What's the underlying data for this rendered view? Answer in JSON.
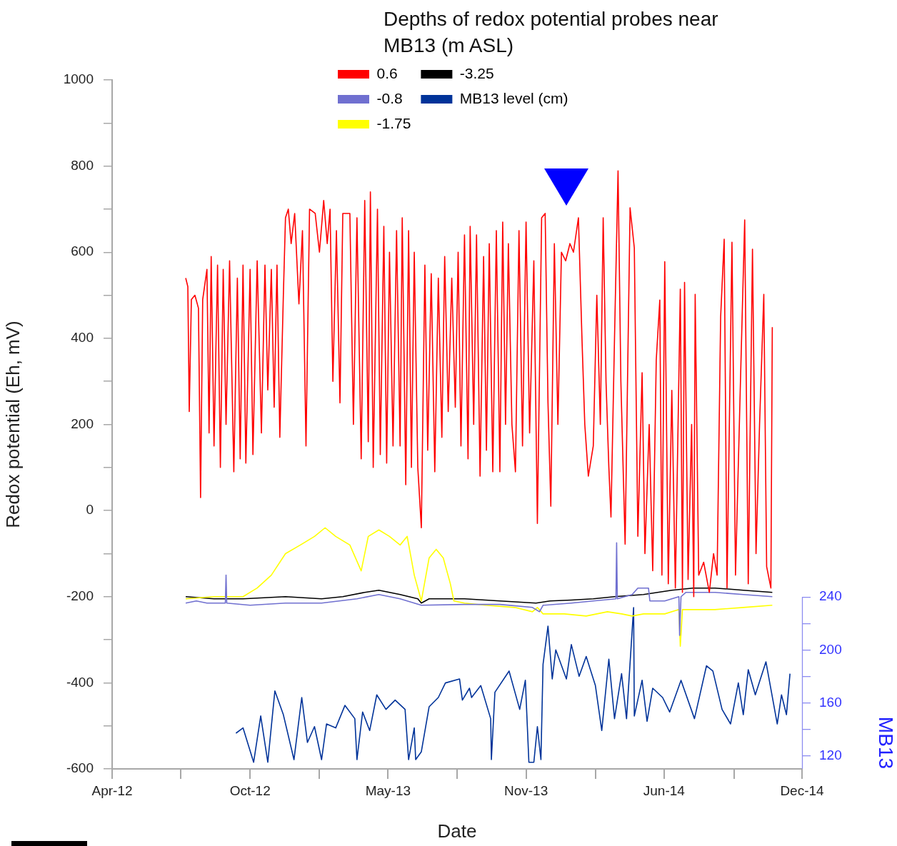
{
  "chart_data": {
    "type": "line",
    "legend_title": "Depths of redox potential probes near MB13 (m ASL)",
    "legend": "top",
    "marker": "none",
    "xlabel": "Date",
    "ylabel": "Redox potential (Eh, mV)",
    "y2label": "MB13",
    "xlim": [
      "2012-04-15",
      "2014-12-16"
    ],
    "xticks": [
      {
        "value": "2012-04-15",
        "label": "Apr-12"
      },
      {
        "value": "2012-07-21",
        "label": null
      },
      {
        "value": "2012-10-27",
        "label": "Oct-12"
      },
      {
        "value": "2013-02-02",
        "label": null
      },
      {
        "value": "2013-05-10",
        "label": "May-13"
      },
      {
        "value": "2013-08-16",
        "label": null
      },
      {
        "value": "2013-11-21",
        "label": "Nov-13"
      },
      {
        "value": "2014-02-27",
        "label": null
      },
      {
        "value": "2014-06-04",
        "label": "Jun-14"
      },
      {
        "value": "2014-09-11",
        "label": null
      },
      {
        "value": "2014-12-16",
        "label": "Dec-14"
      }
    ],
    "ylim": [
      -600,
      1000
    ],
    "yticks": [
      -600,
      {
        "value": -500,
        "label": null
      },
      -400,
      {
        "value": -300,
        "label": null
      },
      -200,
      {
        "value": -100,
        "label": null
      },
      0,
      {
        "value": 100,
        "label": null
      },
      200,
      {
        "value": 300,
        "label": null
      },
      400,
      {
        "value": 500,
        "label": null
      },
      600,
      {
        "value": 700,
        "label": null
      },
      800,
      {
        "value": 900,
        "label": null
      },
      1000
    ],
    "y2lim": [
      110,
      631
    ],
    "y2ticks": [
      120,
      {
        "value": 140,
        "label": null
      },
      160,
      {
        "value": 180,
        "label": null
      },
      200,
      {
        "value": 220,
        "label": null
      },
      240
    ],
    "series": [
      {
        "name": "0.6",
        "color": "#ff0000",
        "x": [
          "2012-07-28",
          "2012-07-31",
          "2012-08-02",
          "2012-08-05",
          "2012-08-10",
          "2012-08-15",
          "2012-08-18",
          "2012-08-21",
          "2012-08-27",
          "2012-08-30",
          "2012-09-02",
          "2012-09-06",
          "2012-09-11",
          "2012-09-15",
          "2012-09-19",
          "2012-09-23",
          "2012-09-28",
          "2012-10-04",
          "2012-10-09",
          "2012-10-13",
          "2012-10-17",
          "2012-10-21",
          "2012-10-27",
          "2012-10-31",
          "2012-11-06",
          "2012-11-12",
          "2012-11-17",
          "2012-11-21",
          "2012-11-26",
          "2012-11-30",
          "2012-12-04",
          "2012-12-08",
          "2012-12-13",
          "2012-12-16",
          "2012-12-20",
          "2012-12-24",
          "2012-12-29",
          "2013-01-04",
          "2013-01-09",
          "2013-01-14",
          "2013-01-19",
          "2013-01-27",
          "2013-02-02",
          "2013-02-08",
          "2013-02-13",
          "2013-02-17",
          "2013-02-21",
          "2013-02-26",
          "2013-03-03",
          "2013-03-07",
          "2013-03-17",
          "2013-03-22",
          "2013-03-27",
          "2013-04-02",
          "2013-04-07",
          "2013-04-12",
          "2013-04-15",
          "2013-04-19",
          "2013-04-25",
          "2013-04-29",
          "2013-05-04",
          "2013-05-08",
          "2013-05-12",
          "2013-05-17",
          "2013-05-22",
          "2013-05-27",
          "2013-05-30",
          "2013-06-04",
          "2013-06-08",
          "2013-06-12",
          "2013-06-16",
          "2013-06-21",
          "2013-06-26",
          "2013-07-01",
          "2013-07-05",
          "2013-07-10",
          "2013-07-15",
          "2013-07-20",
          "2013-07-25",
          "2013-07-29",
          "2013-08-03",
          "2013-08-08",
          "2013-08-13",
          "2013-08-17",
          "2013-08-21",
          "2013-08-26",
          "2013-08-31",
          "2013-09-03",
          "2013-09-08",
          "2013-09-12",
          "2013-09-17",
          "2013-09-22",
          "2013-09-26",
          "2013-09-30",
          "2013-10-05",
          "2013-10-10",
          "2013-10-15",
          "2013-10-19",
          "2013-10-23",
          "2013-10-27",
          "2013-11-01",
          "2013-11-06",
          "2013-11-11",
          "2013-11-16",
          "2013-11-21",
          "2013-11-26",
          "2013-12-02",
          "2013-12-07",
          "2013-12-13",
          "2013-12-18",
          "2013-12-22",
          "2013-12-26",
          "2013-12-31",
          "2014-01-05",
          "2014-01-10",
          "2014-01-16",
          "2014-01-22",
          "2014-01-27",
          "2014-02-03",
          "2014-02-08",
          "2014-02-12",
          "2014-02-17",
          "2014-02-24",
          "2014-03-01",
          "2014-03-06",
          "2014-03-10",
          "2014-03-14",
          "2014-03-18",
          "2014-03-21",
          "2014-03-26",
          "2014-03-31",
          "2014-04-04",
          "2014-04-10",
          "2014-04-17",
          "2014-04-23",
          "2014-04-28",
          "2014-05-04",
          "2014-05-08",
          "2014-05-14",
          "2014-05-19",
          "2014-05-24",
          "2014-05-29",
          "2014-06-01",
          "2014-06-05",
          "2014-06-10",
          "2014-06-15",
          "2014-06-20",
          "2014-06-27",
          "2014-06-30",
          "2014-07-03",
          "2014-07-08",
          "2014-07-13",
          "2014-07-16",
          "2014-07-18",
          "2014-07-23",
          "2014-07-30",
          "2014-08-07",
          "2014-08-13",
          "2014-08-18",
          "2014-08-23",
          "2014-08-28",
          "2014-09-01",
          "2014-09-08",
          "2014-09-13",
          "2014-09-20",
          "2014-09-26",
          "2014-10-01",
          "2014-10-07",
          "2014-10-12",
          "2014-10-17",
          "2014-10-23",
          "2014-10-27",
          "2014-11-02",
          "2014-11-04"
        ],
        "values": [
          540,
          520,
          230,
          490,
          500,
          470,
          30,
          490,
          560,
          180,
          590,
          150,
          570,
          100,
          560,
          200,
          580,
          90,
          540,
          120,
          570,
          110,
          560,
          130,
          580,
          180,
          570,
          280,
          560,
          240,
          570,
          170,
          500,
          680,
          700,
          620,
          690,
          480,
          650,
          150,
          700,
          690,
          600,
          720,
          620,
          700,
          300,
          650,
          250,
          690,
          690,
          200,
          680,
          120,
          720,
          160,
          740,
          100,
          700,
          130,
          660,
          110,
          600,
          150,
          650,
          150,
          680,
          60,
          650,
          100,
          600,
          100,
          -40,
          570,
          140,
          550,
          90,
          540,
          170,
          590,
          230,
          540,
          240,
          600,
          150,
          640,
          120,
          660,
          200,
          640,
          80,
          590,
          140,
          620,
          90,
          650,
          90,
          670,
          200,
          620,
          200,
          90,
          650,
          150,
          670,
          180,
          580,
          -30,
          680,
          690,
          250,
          10,
          620,
          200,
          600,
          580,
          620,
          600,
          680,
          400,
          200,
          80,
          150,
          500,
          200,
          680,
          300,
          100,
          -15,
          400,
          789,
          300,
          -78,
          703,
          610,
          -60,
          320,
          -100,
          200,
          -140,
          350,
          489,
          -150,
          578,
          -170,
          279,
          -180,
          514,
          -190,
          530,
          -160,
          200,
          -200,
          502,
          -150,
          -120,
          -190,
          -100,
          -150,
          450,
          630,
          -180,
          623,
          -150,
          300,
          675,
          -170,
          607,
          -100,
          200,
          502,
          -130,
          -180,
          426
        ]
      },
      {
        "name": "-0.8",
        "color": "#7070d0",
        "x": [
          "2012-07-28",
          "2012-08-12",
          "2012-08-27",
          "2012-09-22",
          "2012-09-23",
          "2012-09-24",
          "2012-10-27",
          "2012-12-16",
          "2013-02-05",
          "2013-03-27",
          "2013-04-27",
          "2013-05-27",
          "2013-06-26",
          "2013-08-26",
          "2013-10-15",
          "2013-11-30",
          "2013-12-10",
          "2013-12-15",
          "2014-01-24",
          "2014-02-24",
          "2014-03-28",
          "2014-03-29",
          "2014-03-30",
          "2014-04-20",
          "2014-04-28",
          "2014-05-13",
          "2014-05-15",
          "2014-06-05",
          "2014-06-25",
          "2014-06-26",
          "2014-06-28",
          "2014-07-05",
          "2014-08-15",
          "2014-09-24",
          "2014-11-04"
        ],
        "values": [
          -215,
          -210,
          -215,
          -215,
          -150,
          -215,
          -220,
          -215,
          -215,
          -205,
          -195,
          -205,
          -220,
          -218,
          -218,
          -225,
          -235,
          -220,
          -215,
          -210,
          -205,
          -75,
          -205,
          -195,
          -180,
          -180,
          -210,
          -210,
          -200,
          -290,
          -200,
          -190,
          -190,
          -195,
          -200
        ]
      },
      {
        "name": "-1.75",
        "color": "#ffff00",
        "x": [
          "2012-07-28",
          "2012-09-06",
          "2012-10-17",
          "2012-11-06",
          "2012-11-26",
          "2012-12-16",
          "2013-01-06",
          "2013-01-26",
          "2013-02-10",
          "2013-02-25",
          "2013-03-17",
          "2013-04-02",
          "2013-04-12",
          "2013-04-27",
          "2013-05-12",
          "2013-05-27",
          "2013-06-06",
          "2013-06-16",
          "2013-06-26",
          "2013-07-07",
          "2013-07-17",
          "2013-07-27",
          "2013-08-06",
          "2013-08-11",
          "2013-08-26",
          "2013-09-25",
          "2013-11-05",
          "2013-11-30",
          "2013-12-07",
          "2013-12-15",
          "2014-01-14",
          "2014-02-14",
          "2014-03-16",
          "2014-04-05",
          "2014-04-20",
          "2014-05-06",
          "2014-06-05",
          "2014-06-25",
          "2014-06-27",
          "2014-06-30",
          "2014-08-15",
          "2014-09-24",
          "2014-11-04"
        ],
        "values": [
          -205,
          -200,
          -200,
          -180,
          -150,
          -100,
          -80,
          -60,
          -40,
          -60,
          -80,
          -140,
          -60,
          -45,
          -60,
          -80,
          -60,
          -150,
          -210,
          -110,
          -90,
          -110,
          -170,
          -210,
          -215,
          -220,
          -225,
          -235,
          -225,
          -240,
          -240,
          -245,
          -235,
          -240,
          -245,
          -240,
          -240,
          -230,
          -315,
          -230,
          -230,
          -225,
          -220
        ]
      },
      {
        "name": "-3.25",
        "color": "#000000",
        "x": [
          "2012-07-28",
          "2012-09-06",
          "2012-10-17",
          "2012-12-16",
          "2013-02-05",
          "2013-03-07",
          "2013-04-07",
          "2013-04-27",
          "2013-05-27",
          "2013-06-21",
          "2013-06-26",
          "2013-07-07",
          "2013-08-26",
          "2013-10-15",
          "2013-12-05",
          "2013-12-25",
          "2014-01-24",
          "2014-02-24",
          "2014-03-26",
          "2014-05-06",
          "2014-06-15",
          "2014-07-15",
          "2014-08-15",
          "2014-09-24",
          "2014-11-04"
        ],
        "values": [
          -200,
          -205,
          -205,
          -200,
          -205,
          -200,
          -190,
          -185,
          -195,
          -205,
          -215,
          -205,
          -205,
          -210,
          -215,
          -210,
          -208,
          -205,
          -200,
          -195,
          -185,
          -180,
          -180,
          -185,
          -190
        ]
      },
      {
        "name": "MB13 level (cm)",
        "color": "#003399",
        "axis": "y2",
        "x": [
          "2012-10-07",
          "2012-10-17",
          "2012-11-01",
          "2012-11-11",
          "2012-11-21",
          "2012-12-01",
          "2012-12-13",
          "2012-12-28",
          "2013-01-08",
          "2013-01-16",
          "2013-01-26",
          "2013-02-05",
          "2013-02-12",
          "2013-02-25",
          "2013-03-10",
          "2013-03-24",
          "2013-03-27",
          "2013-04-04",
          "2013-04-14",
          "2013-04-24",
          "2013-05-07",
          "2013-05-20",
          "2013-06-03",
          "2013-06-08",
          "2013-06-16",
          "2013-06-18",
          "2013-06-26",
          "2013-07-07",
          "2013-07-20",
          "2013-07-30",
          "2013-08-19",
          "2013-08-23",
          "2013-09-02",
          "2013-09-05",
          "2013-09-18",
          "2013-10-02",
          "2013-10-03",
          "2013-10-08",
          "2013-10-28",
          "2013-11-12",
          "2013-11-20",
          "2013-11-25",
          "2013-12-02",
          "2013-12-07",
          "2013-12-12",
          "2013-12-15",
          "2013-12-22",
          "2013-12-28",
          "2014-01-02",
          "2014-01-17",
          "2014-01-24",
          "2014-02-04",
          "2014-02-14",
          "2014-02-27",
          "2014-03-08",
          "2014-03-18",
          "2014-03-26",
          "2014-04-05",
          "2014-04-12",
          "2014-04-22",
          "2014-04-23",
          "2014-05-04",
          "2014-05-11",
          "2014-05-19",
          "2014-06-02",
          "2014-06-12",
          "2014-06-28",
          "2014-07-17",
          "2014-08-03",
          "2014-08-12",
          "2014-08-25",
          "2014-09-06",
          "2014-09-17",
          "2014-09-24",
          "2014-10-01",
          "2014-10-11",
          "2014-10-26",
          "2014-11-11",
          "2014-11-17",
          "2014-11-24",
          "2014-11-29"
        ],
        "values": [
          137,
          141,
          115,
          150,
          115,
          169,
          151,
          117,
          164,
          130,
          142,
          117,
          144,
          141,
          158,
          148,
          117,
          153,
          139,
          166,
          155,
          162,
          155,
          117,
          141,
          117,
          123,
          157,
          164,
          175,
          178,
          162,
          171,
          164,
          173,
          148,
          117,
          168,
          184,
          155,
          177,
          115,
          115,
          142,
          117,
          189,
          218,
          178,
          200,
          178,
          204,
          180,
          195,
          173,
          139,
          193,
          148,
          182,
          148,
          232,
          150,
          177,
          146,
          171,
          164,
          153,
          177,
          148,
          188,
          184,
          155,
          144,
          175,
          151,
          185,
          166,
          191,
          144,
          166,
          151,
          182
        ]
      }
    ]
  }
}
